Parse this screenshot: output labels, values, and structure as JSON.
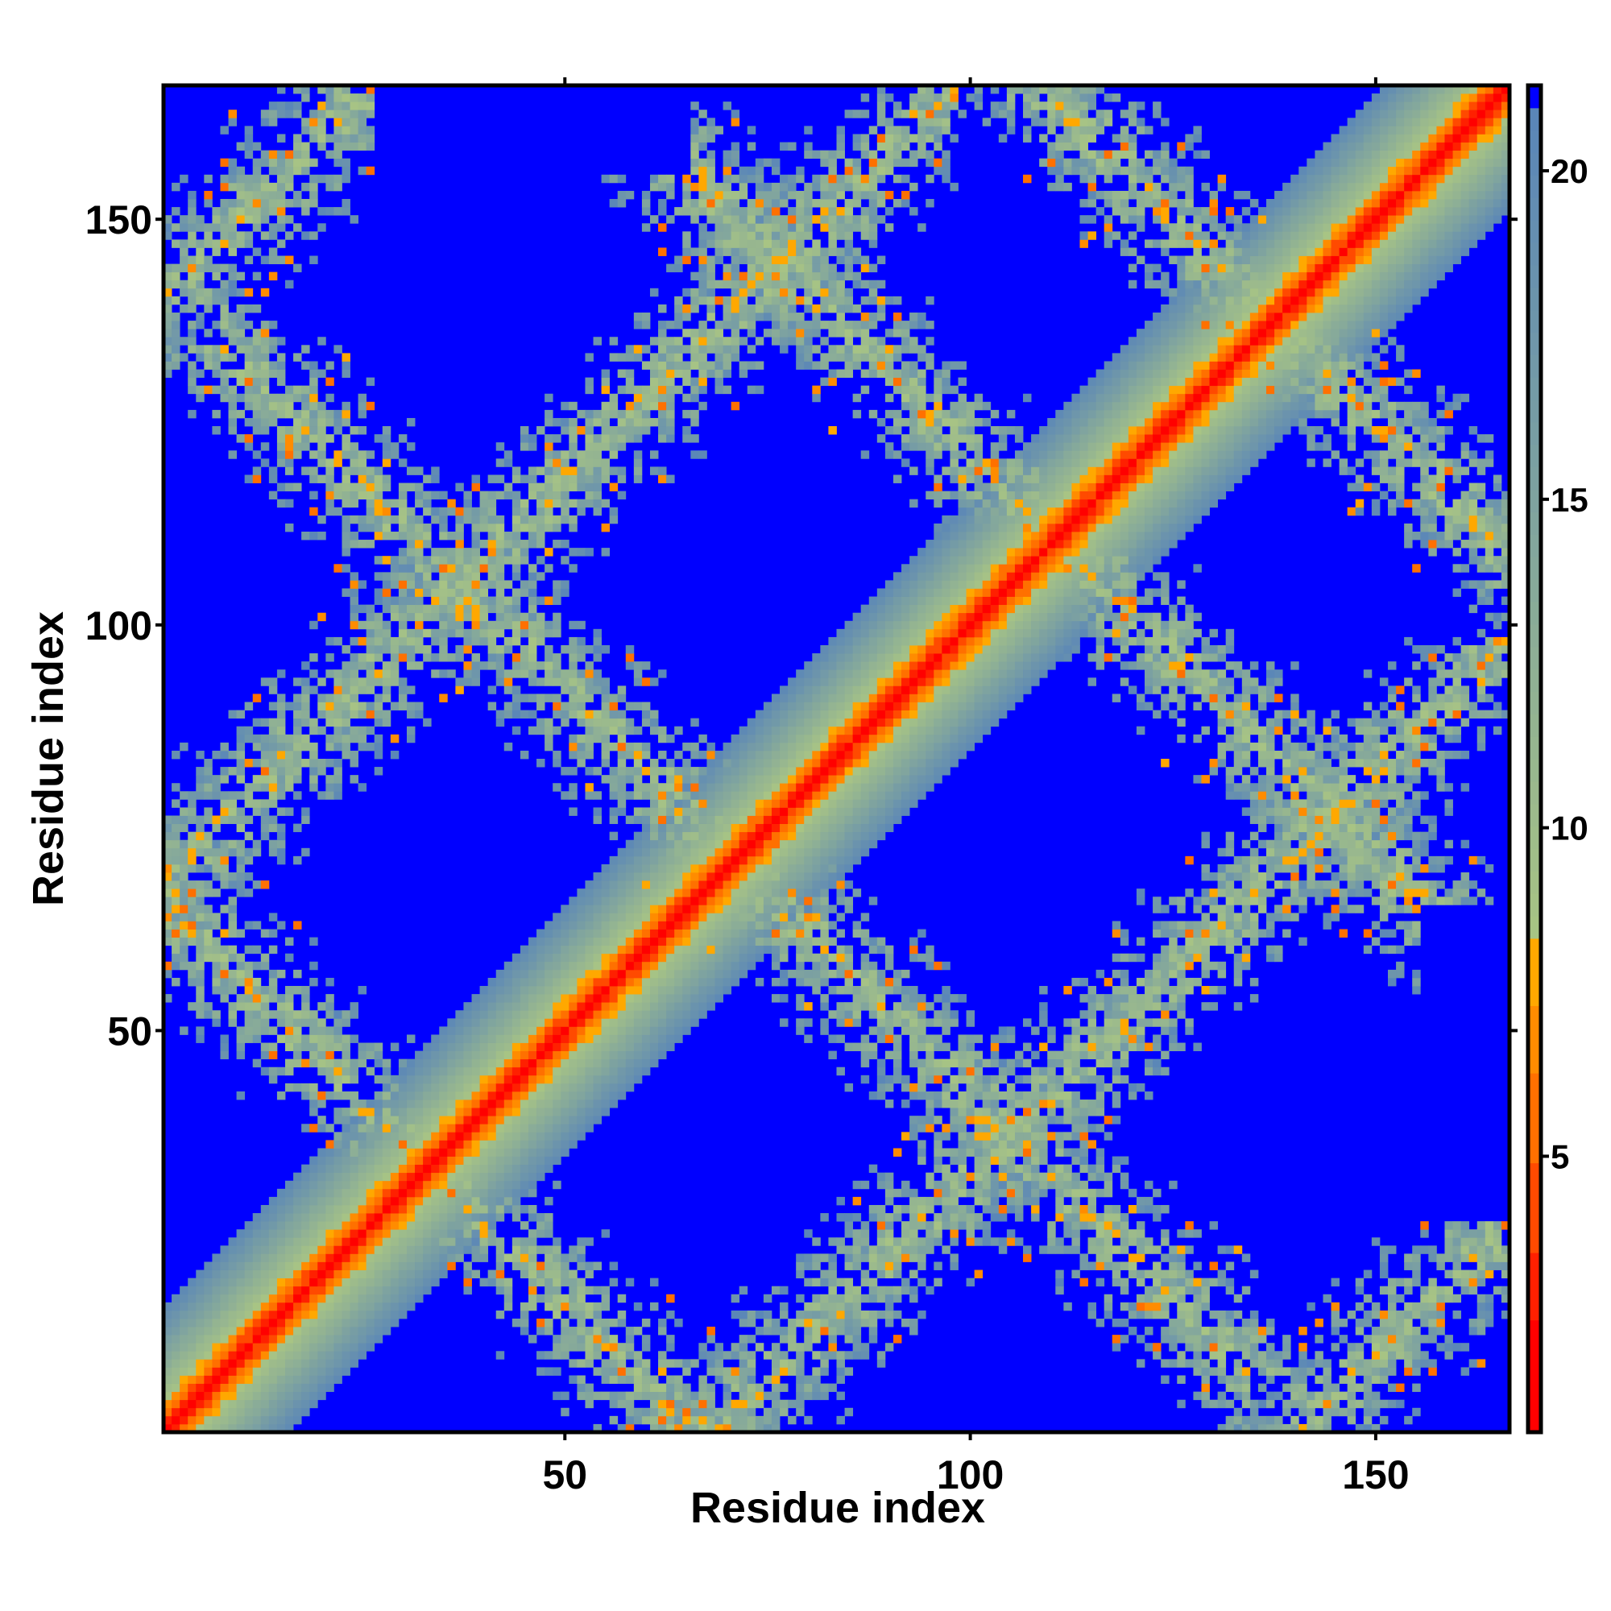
{
  "chart_data": {
    "type": "heatmap",
    "title": "",
    "xlabel": "Residue index",
    "ylabel": "Residue index",
    "n_residues": 166,
    "xlim": [
      0.5,
      166.5
    ],
    "ylim": [
      0.5,
      166.5
    ],
    "x_ticks": [
      50,
      100,
      150
    ],
    "y_ticks": [
      50,
      100,
      150
    ],
    "colorbar": {
      "range": [
        0.8,
        21.3
      ],
      "ticks": [
        5,
        10,
        15,
        20
      ],
      "cutoff": 20.8,
      "above_cutoff_color": "#0000ff",
      "stops": [
        {
          "max": 2.5,
          "color": "#ff0000"
        },
        {
          "max": 3.7,
          "color": "#ff2000"
        },
        {
          "max": 4.9,
          "color": "#ff4a00"
        },
        {
          "max": 6.1,
          "color": "#ff7000"
        },
        {
          "max": 7.3,
          "color": "#ff8c00"
        },
        {
          "max": 8.4,
          "color": "#ffa800"
        }
      ],
      "gradient_low": "#a8c484",
      "gradient_high": "#5a86b8"
    },
    "matrix_description": {
      "diagonal_band_half_width": 15,
      "bands": [
        {
          "kind": "antiparallel",
          "i_plus_j": 66,
          "i_range": [
            1,
            66
          ]
        },
        {
          "kind": "antiparallel",
          "i_plus_j": 142,
          "i_range": [
            8,
            134
          ]
        },
        {
          "kind": "antiparallel",
          "i_plus_j": 221,
          "i_range": [
            66,
            155
          ]
        },
        {
          "kind": "antiparallel",
          "i_plus_j": 275,
          "i_range": [
            109,
            166
          ]
        },
        {
          "kind": "parallel",
          "j_minus_i": 140,
          "i_range": [
            1,
            26
          ]
        },
        {
          "kind": "parallel",
          "j_minus_i": 68,
          "i_range": [
            1,
            98
          ]
        }
      ],
      "seed": 7
    }
  }
}
